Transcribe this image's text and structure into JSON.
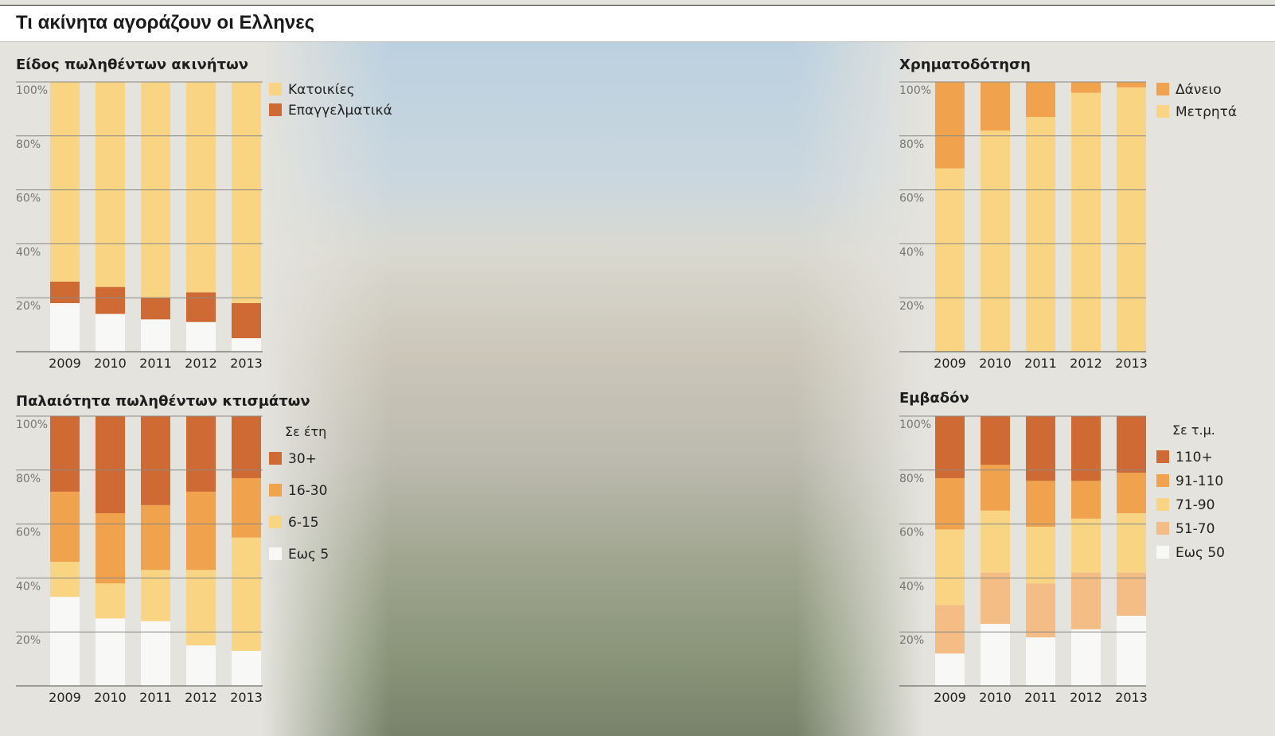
{
  "header": {
    "title": "Τι ακίνητα αγοράζουν οι Ελληνες"
  },
  "colors": {
    "background": "#e4e3dd",
    "dark_orange": "#cf6a35",
    "orange": "#f0a24d",
    "light_yellow": "#f8d483",
    "peach": "#f3bd85",
    "white_bar": "#f8f8f6",
    "grid": "#8a8a85"
  },
  "chart_data": [
    {
      "id": "type",
      "type": "bar",
      "stacked": true,
      "title": "Είδος πωληθέντων ακινήτων",
      "categories": [
        "2009",
        "2010",
        "2011",
        "2012",
        "2013"
      ],
      "ytick_labels": [
        "20%",
        "40%",
        "60%",
        "80%",
        "100%"
      ],
      "ylim": [
        0,
        100
      ],
      "legend_title": "",
      "series": [
        {
          "name": "",
          "color": "#f8f8f6",
          "values": [
            18,
            14,
            12,
            11,
            5
          ]
        },
        {
          "name": "Επαγγελματικά",
          "color": "#cf6a35",
          "values": [
            8,
            10,
            8,
            11,
            13
          ]
        },
        {
          "name": "Κατοικίες",
          "color": "#f8d483",
          "values": [
            74,
            76,
            80,
            78,
            82
          ]
        }
      ],
      "legend": [
        {
          "label": "Κατοικίες",
          "color": "#f8d483"
        },
        {
          "label": "Επαγγελματικά",
          "color": "#cf6a35"
        }
      ]
    },
    {
      "id": "finance",
      "type": "bar",
      "stacked": true,
      "title": "Χρηματοδότηση",
      "categories": [
        "2009",
        "2010",
        "2011",
        "2012",
        "2013"
      ],
      "ytick_labels": [
        "20%",
        "40%",
        "60%",
        "80%",
        "100%"
      ],
      "ylim": [
        0,
        100
      ],
      "legend_title": "",
      "series": [
        {
          "name": "Μετρητά",
          "color": "#f8d483",
          "values": [
            68,
            82,
            87,
            96,
            98
          ]
        },
        {
          "name": "Δάνειο",
          "color": "#f0a24d",
          "values": [
            32,
            18,
            13,
            4,
            2
          ]
        }
      ],
      "legend": [
        {
          "label": "Δάνειο",
          "color": "#f0a24d"
        },
        {
          "label": "Μετρητά",
          "color": "#f8d483"
        }
      ]
    },
    {
      "id": "age",
      "type": "bar",
      "stacked": true,
      "title": "Παλαιότητα πωληθέντων κτισμάτων",
      "categories": [
        "2009",
        "2010",
        "2011",
        "2012",
        "2013"
      ],
      "ytick_labels": [
        "20%",
        "40%",
        "60%",
        "80%",
        "100%"
      ],
      "ylim": [
        0,
        100
      ],
      "legend_title": "Σε έτη",
      "series": [
        {
          "name": "Εως 5",
          "color": "#f8f8f6",
          "values": [
            33,
            25,
            24,
            15,
            13
          ]
        },
        {
          "name": "6-15",
          "color": "#f8d483",
          "values": [
            13,
            13,
            19,
            28,
            42
          ]
        },
        {
          "name": "16-30",
          "color": "#f0a24d",
          "values": [
            26,
            26,
            24,
            29,
            22
          ]
        },
        {
          "name": "30+",
          "color": "#cf6a35",
          "values": [
            28,
            36,
            33,
            28,
            23
          ]
        }
      ],
      "legend": [
        {
          "label": "30+",
          "color": "#cf6a35"
        },
        {
          "label": "16-30",
          "color": "#f0a24d"
        },
        {
          "label": "6-15",
          "color": "#f8d483"
        },
        {
          "label": "Εως 5",
          "color": "#f8f8f6"
        }
      ]
    },
    {
      "id": "area",
      "type": "bar",
      "stacked": true,
      "title": "Εμβαδόν",
      "categories": [
        "2009",
        "2010",
        "2011",
        "2012",
        "2013"
      ],
      "ytick_labels": [
        "20%",
        "40%",
        "60%",
        "80%",
        "100%"
      ],
      "ylim": [
        0,
        100
      ],
      "legend_title": "Σε τ.μ.",
      "series": [
        {
          "name": "Εως 50",
          "color": "#f8f8f6",
          "values": [
            12,
            23,
            18,
            21,
            26
          ]
        },
        {
          "name": "51-70",
          "color": "#f3bd85",
          "values": [
            18,
            19,
            20,
            21,
            16
          ]
        },
        {
          "name": "71-90",
          "color": "#f8d483",
          "values": [
            28,
            23,
            21,
            20,
            22
          ]
        },
        {
          "name": "91-110",
          "color": "#f0a24d",
          "values": [
            19,
            17,
            17,
            14,
            15
          ]
        },
        {
          "name": "110+",
          "color": "#cf6a35",
          "values": [
            23,
            18,
            24,
            24,
            21
          ]
        }
      ],
      "legend": [
        {
          "label": "110+",
          "color": "#cf6a35"
        },
        {
          "label": "91-110",
          "color": "#f0a24d"
        },
        {
          "label": "71-90",
          "color": "#f8d483"
        },
        {
          "label": "51-70",
          "color": "#f3bd85"
        },
        {
          "label": "Εως 50",
          "color": "#f8f8f6"
        }
      ]
    }
  ]
}
